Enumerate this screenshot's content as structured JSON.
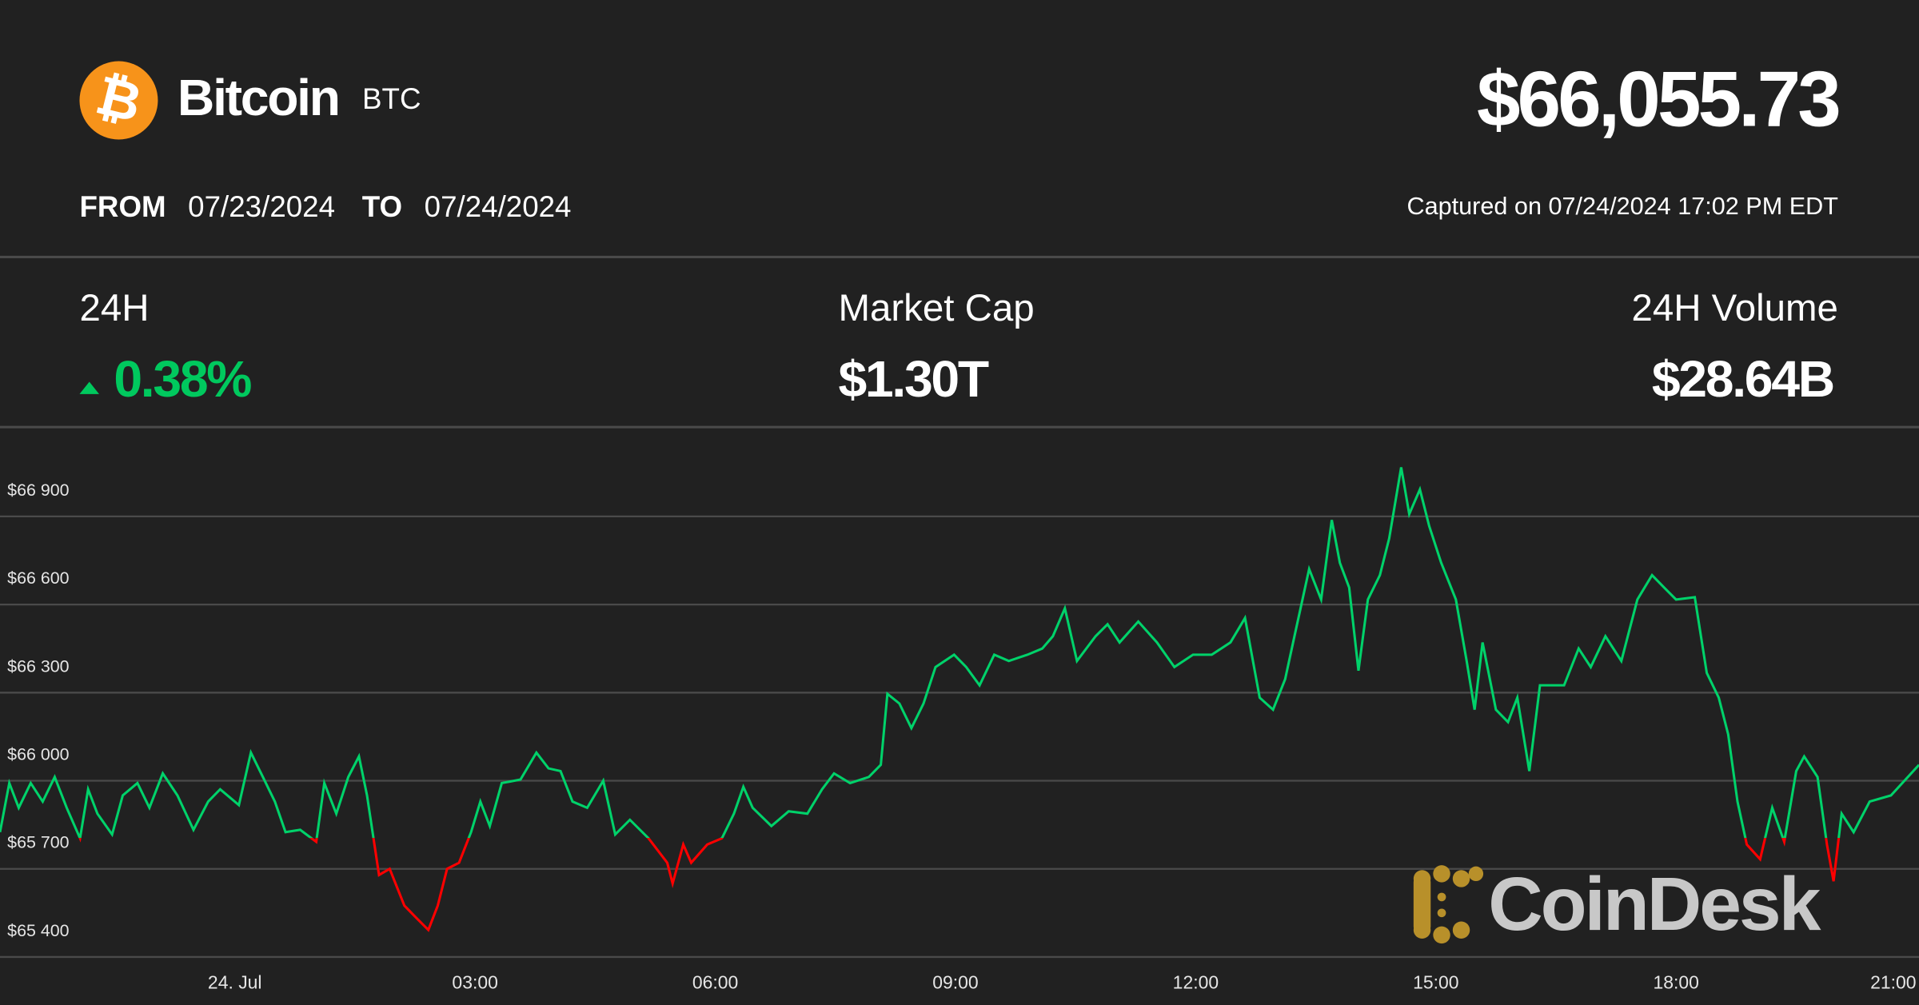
{
  "header": {
    "coin_name": "Bitcoin",
    "coin_symbol": "BTC",
    "logo_icon": "bitcoin-icon",
    "logo_glyph": "₿",
    "price": "$66,055.73",
    "from_label": "FROM",
    "from_date": "07/23/2024",
    "to_label": "TO",
    "to_date": "07/24/2024",
    "captured": "Captured on 07/24/2024 17:02 PM EDT"
  },
  "stats": {
    "change_label": "24H",
    "change_value": "0.38%",
    "change_direction": "up",
    "market_cap_label": "Market Cap",
    "market_cap_value": "$1.30T",
    "volume_label": "24H Volume",
    "volume_value": "$28.64B"
  },
  "colors": {
    "background": "#212121",
    "up": "#00d26a",
    "down": "#ff0000",
    "bitcoin_orange": "#f7931a",
    "watermark_gold": "#b8902a"
  },
  "watermark": "CoinDesk",
  "chart_data": {
    "type": "line",
    "grid": true,
    "ylim": [
      65400,
      67200
    ],
    "y_ticks": [
      65400,
      65700,
      66000,
      66300,
      66600,
      66900
    ],
    "y_tick_labels": [
      "$65 400",
      "$65 700",
      "$66 000",
      "$66 300",
      "$66 600",
      "$66 900"
    ],
    "x_range": [
      "2024-07-23T21:04",
      "2024-07-24T21:02"
    ],
    "x_ticks": [
      {
        "t": "2024-07-24T00:00",
        "label": "24. Jul"
      },
      {
        "t": "2024-07-24T03:00",
        "label": "03:00"
      },
      {
        "t": "2024-07-24T06:00",
        "label": "06:00"
      },
      {
        "t": "2024-07-24T09:00",
        "label": "09:00"
      },
      {
        "t": "2024-07-24T12:00",
        "label": "12:00"
      },
      {
        "t": "2024-07-24T15:00",
        "label": "15:00"
      },
      {
        "t": "2024-07-24T18:00",
        "label": "18:00"
      },
      {
        "t": "2024-07-24T21:00",
        "label": "21:00"
      }
    ],
    "threshold": 65805,
    "points": [
      [
        "2024-07-23T21:04",
        65825
      ],
      [
        "2024-07-23T21:11",
        65992
      ],
      [
        "2024-07-23T21:18",
        65908
      ],
      [
        "2024-07-23T21:27",
        65992
      ],
      [
        "2024-07-23T21:36",
        65929
      ],
      [
        "2024-07-23T21:45",
        66013
      ],
      [
        "2024-07-23T21:54",
        65908
      ],
      [
        "2024-07-23T22:04",
        65804
      ],
      [
        "2024-07-23T22:10",
        65971
      ],
      [
        "2024-07-23T22:17",
        65888
      ],
      [
        "2024-07-23T22:28",
        65817
      ],
      [
        "2024-07-23T22:36",
        65950
      ],
      [
        "2024-07-23T22:47",
        65992
      ],
      [
        "2024-07-23T22:56",
        65908
      ],
      [
        "2024-07-23T23:06",
        66025
      ],
      [
        "2024-07-23T23:17",
        65950
      ],
      [
        "2024-07-23T23:29",
        65833
      ],
      [
        "2024-07-23T23:40",
        65929
      ],
      [
        "2024-07-23T23:49",
        65971
      ],
      [
        "2024-07-24T00:03",
        65917
      ],
      [
        "2024-07-24T00:12",
        66096
      ],
      [
        "2024-07-24T00:21",
        66013
      ],
      [
        "2024-07-24T00:30",
        65929
      ],
      [
        "2024-07-24T00:38",
        65825
      ],
      [
        "2024-07-24T00:49",
        65833
      ],
      [
        "2024-07-24T01:01",
        65792
      ],
      [
        "2024-07-24T01:07",
        65992
      ],
      [
        "2024-07-24T01:16",
        65888
      ],
      [
        "2024-07-24T01:25",
        66013
      ],
      [
        "2024-07-24T01:33",
        66083
      ],
      [
        "2024-07-24T01:39",
        65950
      ],
      [
        "2024-07-24T01:48",
        65679
      ],
      [
        "2024-07-24T01:56",
        65700
      ],
      [
        "2024-07-24T02:07",
        65575
      ],
      [
        "2024-07-24T02:16",
        65533
      ],
      [
        "2024-07-24T02:25",
        65492
      ],
      [
        "2024-07-24T02:32",
        65575
      ],
      [
        "2024-07-24T02:39",
        65700
      ],
      [
        "2024-07-24T02:48",
        65721
      ],
      [
        "2024-07-24T02:57",
        65825
      ],
      [
        "2024-07-24T03:04",
        65929
      ],
      [
        "2024-07-24T03:11",
        65846
      ],
      [
        "2024-07-24T03:20",
        65992
      ],
      [
        "2024-07-24T03:34",
        66004
      ],
      [
        "2024-07-24T03:46",
        66096
      ],
      [
        "2024-07-24T03:55",
        66042
      ],
      [
        "2024-07-24T04:04",
        66033
      ],
      [
        "2024-07-24T04:13",
        65929
      ],
      [
        "2024-07-24T04:24",
        65908
      ],
      [
        "2024-07-24T04:36",
        66000
      ],
      [
        "2024-07-24T04:45",
        65817
      ],
      [
        "2024-07-24T04:56",
        65867
      ],
      [
        "2024-07-24T05:10",
        65804
      ],
      [
        "2024-07-24T05:24",
        65721
      ],
      [
        "2024-07-24T05:28",
        65650
      ],
      [
        "2024-07-24T05:36",
        65783
      ],
      [
        "2024-07-24T05:42",
        65721
      ],
      [
        "2024-07-24T05:54",
        65783
      ],
      [
        "2024-07-24T06:05",
        65804
      ],
      [
        "2024-07-24T06:14",
        65888
      ],
      [
        "2024-07-24T06:21",
        65979
      ],
      [
        "2024-07-24T06:28",
        65908
      ],
      [
        "2024-07-24T06:42",
        65846
      ],
      [
        "2024-07-24T06:55",
        65896
      ],
      [
        "2024-07-24T07:09",
        65888
      ],
      [
        "2024-07-24T07:20",
        65971
      ],
      [
        "2024-07-24T07:29",
        66025
      ],
      [
        "2024-07-24T07:41",
        65992
      ],
      [
        "2024-07-24T07:55",
        66013
      ],
      [
        "2024-07-24T08:04",
        66054
      ],
      [
        "2024-07-24T08:09",
        66296
      ],
      [
        "2024-07-24T08:18",
        66263
      ],
      [
        "2024-07-24T08:27",
        66179
      ],
      [
        "2024-07-24T08:36",
        66263
      ],
      [
        "2024-07-24T08:45",
        66387
      ],
      [
        "2024-07-24T08:59",
        66429
      ],
      [
        "2024-07-24T09:08",
        66387
      ],
      [
        "2024-07-24T09:18",
        66325
      ],
      [
        "2024-07-24T09:29",
        66429
      ],
      [
        "2024-07-24T09:40",
        66408
      ],
      [
        "2024-07-24T09:54",
        66429
      ],
      [
        "2024-07-24T10:05",
        66450
      ],
      [
        "2024-07-24T10:13",
        66492
      ],
      [
        "2024-07-24T10:22",
        66587
      ],
      [
        "2024-07-24T10:31",
        66408
      ],
      [
        "2024-07-24T10:45",
        66492
      ],
      [
        "2024-07-24T10:54",
        66533
      ],
      [
        "2024-07-24T11:03",
        66471
      ],
      [
        "2024-07-24T11:17",
        66542
      ],
      [
        "2024-07-24T11:31",
        66471
      ],
      [
        "2024-07-24T11:44",
        66387
      ],
      [
        "2024-07-24T11:58",
        66429
      ],
      [
        "2024-07-24T12:12",
        66429
      ],
      [
        "2024-07-24T12:26",
        66471
      ],
      [
        "2024-07-24T12:37",
        66554
      ],
      [
        "2024-07-24T12:48",
        66283
      ],
      [
        "2024-07-24T12:58",
        66242
      ],
      [
        "2024-07-24T13:07",
        66346
      ],
      [
        "2024-07-24T13:14",
        66492
      ],
      [
        "2024-07-24T13:25",
        66721
      ],
      [
        "2024-07-24T13:34",
        66617
      ],
      [
        "2024-07-24T13:42",
        66888
      ],
      [
        "2024-07-24T13:48",
        66742
      ],
      [
        "2024-07-24T13:55",
        66658
      ],
      [
        "2024-07-24T14:02",
        66375
      ],
      [
        "2024-07-24T14:09",
        66617
      ],
      [
        "2024-07-24T14:18",
        66700
      ],
      [
        "2024-07-24T14:25",
        66825
      ],
      [
        "2024-07-24T14:34",
        67067
      ],
      [
        "2024-07-24T14:40",
        66908
      ],
      [
        "2024-07-24T14:48",
        66992
      ],
      [
        "2024-07-24T14:55",
        66867
      ],
      [
        "2024-07-24T15:04",
        66742
      ],
      [
        "2024-07-24T15:15",
        66617
      ],
      [
        "2024-07-24T15:23",
        66408
      ],
      [
        "2024-07-24T15:29",
        66242
      ],
      [
        "2024-07-24T15:35",
        66471
      ],
      [
        "2024-07-24T15:45",
        66242
      ],
      [
        "2024-07-24T15:54",
        66200
      ],
      [
        "2024-07-24T16:01",
        66283
      ],
      [
        "2024-07-24T16:10",
        66033
      ],
      [
        "2024-07-24T16:18",
        66325
      ],
      [
        "2024-07-24T16:27",
        66325
      ],
      [
        "2024-07-24T16:36",
        66325
      ],
      [
        "2024-07-24T16:47",
        66450
      ],
      [
        "2024-07-24T16:56",
        66387
      ],
      [
        "2024-07-24T17:07",
        66492
      ],
      [
        "2024-07-24T17:19",
        66408
      ],
      [
        "2024-07-24T17:31",
        66617
      ],
      [
        "2024-07-24T17:42",
        66700
      ],
      [
        "2024-07-24T17:51",
        66658
      ],
      [
        "2024-07-24T18:00",
        66617
      ],
      [
        "2024-07-24T18:14",
        66625
      ],
      [
        "2024-07-24T18:23",
        66367
      ],
      [
        "2024-07-24T18:32",
        66283
      ],
      [
        "2024-07-24T18:39",
        66158
      ],
      [
        "2024-07-24T18:46",
        65929
      ],
      [
        "2024-07-24T18:53",
        65783
      ],
      [
        "2024-07-24T19:03",
        65733
      ],
      [
        "2024-07-24T19:12",
        65908
      ],
      [
        "2024-07-24T19:21",
        65792
      ],
      [
        "2024-07-24T19:30",
        66033
      ],
      [
        "2024-07-24T19:36",
        66083
      ],
      [
        "2024-07-24T19:46",
        66013
      ],
      [
        "2024-07-24T19:53",
        65783
      ],
      [
        "2024-07-24T19:58",
        65658
      ],
      [
        "2024-07-24T20:04",
        65888
      ],
      [
        "2024-07-24T20:13",
        65825
      ],
      [
        "2024-07-24T20:25",
        65929
      ],
      [
        "2024-07-24T20:41",
        65950
      ],
      [
        "2024-07-24T21:02",
        66054
      ]
    ]
  }
}
